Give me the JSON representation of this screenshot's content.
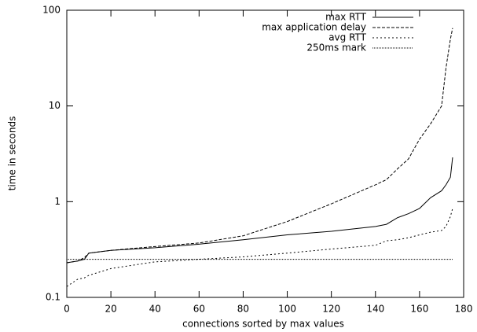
{
  "chart_data": {
    "type": "line",
    "x_label": "connections sorted by max values",
    "y_label": "time in seconds",
    "x": [
      0,
      5,
      8,
      10,
      20,
      40,
      60,
      80,
      100,
      120,
      140,
      145,
      150,
      155,
      160,
      165,
      170,
      172,
      174,
      175
    ],
    "series": [
      {
        "name": "max RTT",
        "color": "#000000",
        "values": [
          0.23,
          0.24,
          0.25,
          0.29,
          0.31,
          0.33,
          0.36,
          0.4,
          0.45,
          0.49,
          0.55,
          0.58,
          0.68,
          0.75,
          0.85,
          1.1,
          1.3,
          1.5,
          1.8,
          2.9
        ]
      },
      {
        "name": "max application delay",
        "color": "#000000",
        "values": [
          0.23,
          0.24,
          0.26,
          0.29,
          0.31,
          0.34,
          0.37,
          0.44,
          0.62,
          0.95,
          1.5,
          1.7,
          2.2,
          2.8,
          4.5,
          6.5,
          10,
          25,
          50,
          65
        ]
      },
      {
        "name": "avg RTT",
        "color": "#000000",
        "values": [
          0.13,
          0.155,
          0.16,
          0.17,
          0.2,
          0.235,
          0.25,
          0.265,
          0.29,
          0.32,
          0.35,
          0.39,
          0.4,
          0.42,
          0.45,
          0.48,
          0.5,
          0.55,
          0.7,
          0.85
        ]
      },
      {
        "name": "250ms mark",
        "color": "#000000",
        "values": [
          0.25,
          0.25,
          0.25,
          0.25,
          0.25,
          0.25,
          0.25,
          0.25,
          0.25,
          0.25,
          0.25,
          0.25,
          0.25,
          0.25,
          0.25,
          0.25,
          0.25,
          0.25,
          0.25,
          0.25
        ]
      }
    ],
    "xlim": [
      0,
      180
    ],
    "xticks": [
      0,
      20,
      40,
      60,
      80,
      100,
      120,
      140,
      160,
      180
    ],
    "ylim": [
      0.1,
      100
    ],
    "yticks": [
      0.1,
      1,
      10,
      100
    ],
    "y_log": true,
    "legend": "top-right"
  }
}
